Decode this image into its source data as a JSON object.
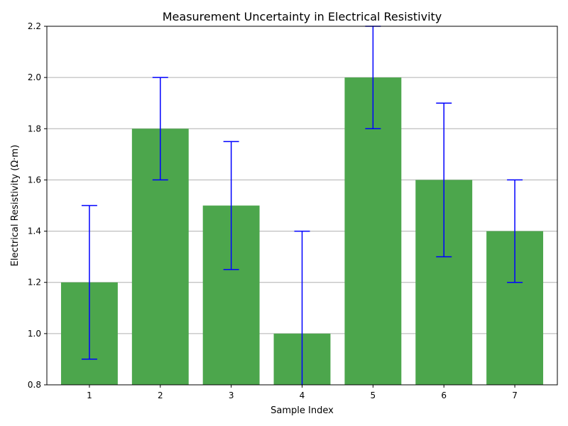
{
  "chart_data": {
    "type": "bar",
    "title": "Measurement Uncertainty in Electrical Resistivity",
    "xlabel": "Sample Index",
    "ylabel": "Electrical Resistivity (Ω·m)",
    "categories": [
      "1",
      "2",
      "3",
      "4",
      "5",
      "6",
      "7"
    ],
    "values": [
      1.2,
      1.8,
      1.5,
      1.0,
      2.0,
      1.6,
      1.4
    ],
    "errors": [
      0.3,
      0.2,
      0.25,
      0.4,
      0.2,
      0.3,
      0.2
    ],
    "ylim": [
      0.8,
      2.2
    ],
    "yticks": [
      "0.8",
      "1.0",
      "1.2",
      "1.4",
      "1.6",
      "1.8",
      "2.0",
      "2.2"
    ],
    "grid": "y-axis",
    "colors": {
      "bar": "#4ca64c",
      "error_bar": "#0000ff",
      "grid": "#b0b0b0",
      "axes": "#000000"
    }
  }
}
